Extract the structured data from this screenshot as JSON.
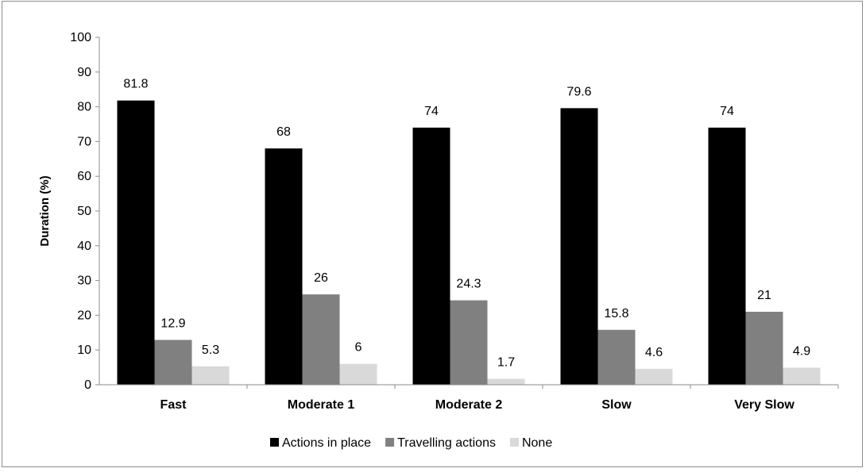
{
  "chart_data": {
    "type": "bar",
    "title": "",
    "xlabel": "",
    "ylabel": "Duration (%)",
    "ylim": [
      0,
      100
    ],
    "yticks": [
      0,
      10,
      20,
      30,
      40,
      50,
      60,
      70,
      80,
      90,
      100
    ],
    "categories": [
      "Fast",
      "Moderate 1",
      "Moderate 2",
      "Slow",
      "Very Slow"
    ],
    "series": [
      {
        "name": "Actions in place",
        "color": "#000000",
        "values": [
          81.8,
          68,
          74,
          79.6,
          74
        ]
      },
      {
        "name": "Travelling actions",
        "color": "#808080",
        "values": [
          12.9,
          26,
          24.3,
          15.8,
          21
        ]
      },
      {
        "name": "None",
        "color": "#d9d9d9",
        "values": [
          5.3,
          6,
          1.7,
          4.6,
          4.9
        ]
      }
    ],
    "grid": false,
    "legend_position": "bottom"
  }
}
